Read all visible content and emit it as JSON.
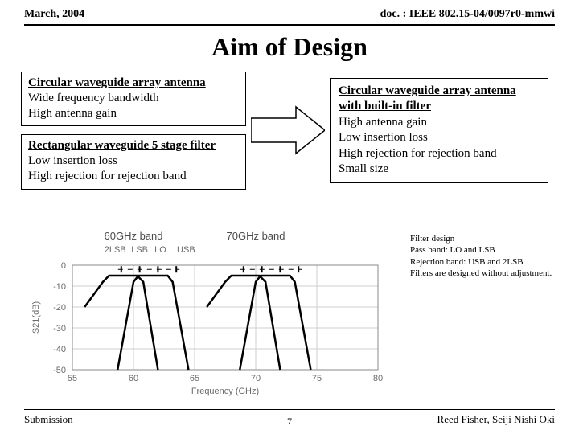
{
  "header": {
    "left": "March, 2004",
    "right": "doc. : IEEE 802.15-04/0097r0-mmwi"
  },
  "title": "Aim of Design",
  "leftBox1": {
    "heading": "Circular waveguide array antenna",
    "line1": "Wide frequency bandwidth",
    "line2": "High antenna gain"
  },
  "leftBox2": {
    "heading": "Rectangular waveguide 5 stage filter",
    "line1": "Low insertion loss",
    "line2": "High rejection for rejection band"
  },
  "rightBox": {
    "heading": "Circular waveguide array antenna with built-in filter",
    "line1": "High antenna gain",
    "line2": "Low insertion loss",
    "line3": "High rejection for rejection band",
    "line4": "Small size"
  },
  "notes": {
    "n1": "Filter design",
    "n2": "Pass band: LO and LSB",
    "n3": "Rejection band: USB and 2LSB",
    "n4": "Filters are designed without adjustment."
  },
  "chart": {
    "band60": "60GHz band",
    "band70": "70GHz band",
    "sub1": "2LSB",
    "sub2": "LSB",
    "sub3": "LO",
    "sub4": "USB",
    "ylabel": "S21(dB)",
    "xlabel": "Frequency (GHz)",
    "yticks": [
      "0",
      "-10",
      "-20",
      "-30",
      "-40",
      "-50"
    ],
    "xticks": [
      "55",
      "60",
      "65",
      "70",
      "75",
      "80"
    ],
    "xrange": [
      55,
      80
    ],
    "yrange": [
      -50,
      0
    ],
    "grid_color": "#cfcfcf",
    "axis_color": "#888888",
    "trace_color": "#000000",
    "topmarks_x": [
      59,
      60.5,
      62,
      63.5,
      69,
      70.5,
      72,
      73.5
    ],
    "topmarks_y": -2,
    "curves": [
      [
        [
          56,
          -20
        ],
        [
          57.5,
          -8
        ],
        [
          58,
          -5
        ],
        [
          60.3,
          -5
        ],
        [
          60.8,
          -8
        ],
        [
          62,
          -50
        ]
      ],
      [
        [
          58.7,
          -50
        ],
        [
          60,
          -8
        ],
        [
          60.4,
          -5
        ],
        [
          62.8,
          -5
        ],
        [
          63.2,
          -8
        ],
        [
          64.5,
          -50
        ]
      ],
      [
        [
          66,
          -20
        ],
        [
          67.5,
          -8
        ],
        [
          68,
          -5
        ],
        [
          70.3,
          -5
        ],
        [
          70.8,
          -8
        ],
        [
          72,
          -50
        ]
      ],
      [
        [
          68.7,
          -50
        ],
        [
          70,
          -8
        ],
        [
          70.4,
          -5
        ],
        [
          72.8,
          -5
        ],
        [
          73.2,
          -8
        ],
        [
          74.5,
          -50
        ]
      ]
    ]
  },
  "footer": {
    "left": "Submission",
    "right": "Reed Fisher, Seiji Nishi  Oki",
    "page": "7"
  }
}
